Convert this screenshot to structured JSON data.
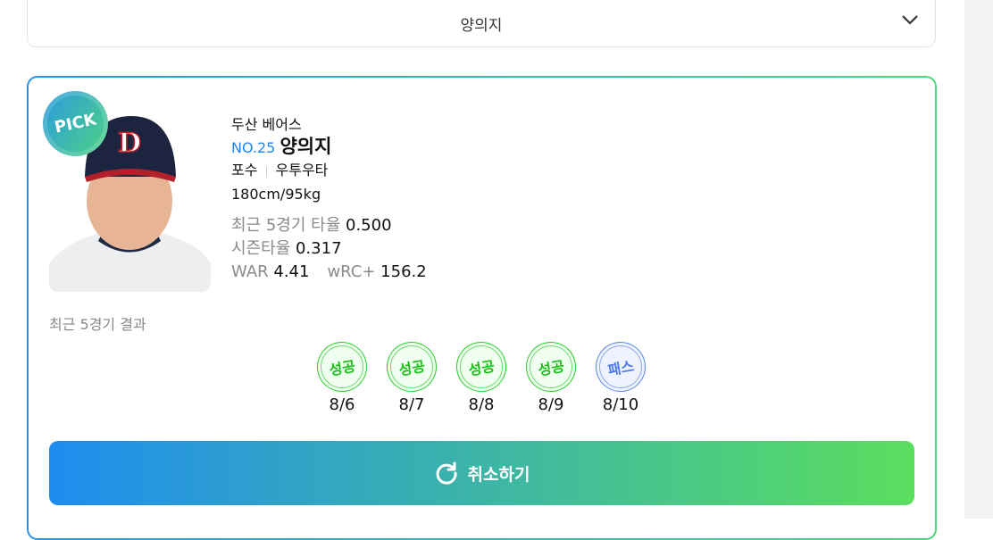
{
  "select": {
    "value": "양의지"
  },
  "player": {
    "badge": "PICK",
    "team": "두산 베어스",
    "number": "NO.25",
    "name": "양의지",
    "position": "포수",
    "bats_throws": "우투우타",
    "body": "180cm/95kg",
    "recent_avg_label": "최근 5경기 타율",
    "recent_avg": "0.500",
    "season_avg_label": "시즌타율",
    "season_avg": "0.317",
    "war_label": "WAR",
    "war": "4.41",
    "wrc_label": "wRC+",
    "wrc": "156.2"
  },
  "results": {
    "label": "최근 5경기 결과",
    "games": [
      {
        "result": "성공",
        "date": "8/6",
        "status": "success"
      },
      {
        "result": "성공",
        "date": "8/7",
        "status": "success"
      },
      {
        "result": "성공",
        "date": "8/8",
        "status": "success"
      },
      {
        "result": "성공",
        "date": "8/9",
        "status": "success"
      },
      {
        "result": "패스",
        "date": "8/10",
        "status": "pass"
      }
    ]
  },
  "cancel_button": {
    "label": "취소하기",
    "icon": "refresh-icon"
  },
  "colors": {
    "accent_blue": "#1e88f0",
    "accent_green": "#5ade5e",
    "success": "#18c018",
    "pass": "#4d7be6"
  }
}
